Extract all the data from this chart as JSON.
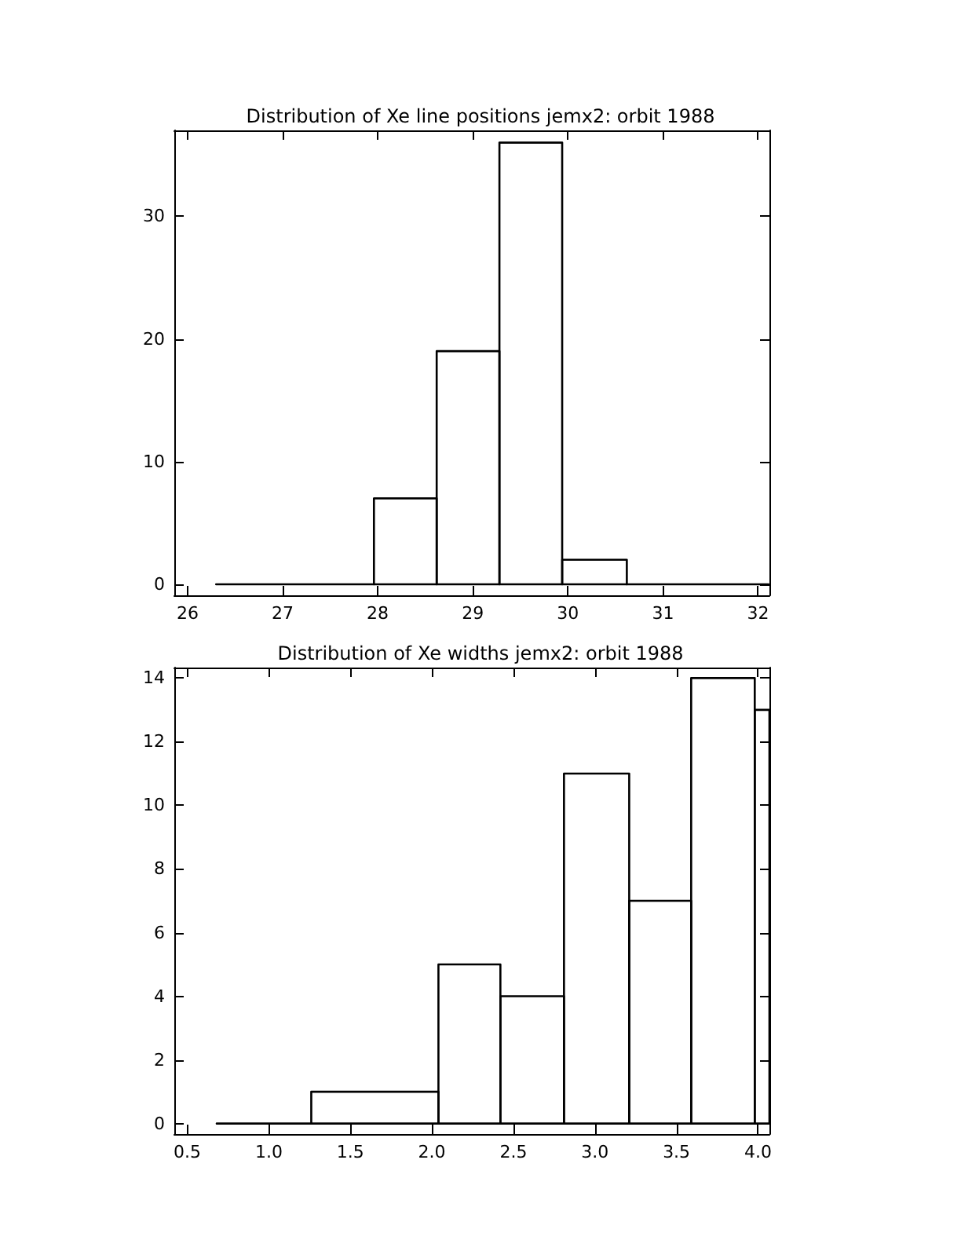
{
  "chart_data": [
    {
      "type": "histogram",
      "title": "Distribution of Xe line positions jemx2: orbit 1988",
      "color": "#000000",
      "grid": false,
      "bins": [
        26.3,
        27.96,
        28.62,
        29.28,
        29.94,
        30.62,
        32.11
      ],
      "values": [
        0,
        7,
        19,
        36,
        2,
        0
      ],
      "xlim": [
        25.86,
        32.12
      ],
      "xticks": [
        26,
        27,
        28,
        29,
        30,
        31,
        32
      ],
      "ylim": [
        -0.9,
        37
      ],
      "yticks": [
        0,
        10,
        20,
        30
      ]
    },
    {
      "type": "histogram",
      "title": "Distribution of Xe widths jemx2: orbit 1988",
      "color": "#000000",
      "grid": false,
      "bins": [
        0.68,
        1.26,
        2.04,
        2.42,
        2.81,
        3.21,
        3.59,
        3.98,
        4.07
      ],
      "values": [
        0,
        1,
        5,
        4,
        11,
        7,
        14,
        13
      ],
      "xlim": [
        0.42,
        4.07
      ],
      "xticks": [
        0.5,
        {
          "value": 1,
          "label": "1.0"
        },
        1.5,
        {
          "value": 2,
          "label": "2.0"
        },
        2.5,
        {
          "value": 3,
          "label": "3.0"
        },
        3.5,
        {
          "value": 4,
          "label": "4.0"
        }
      ],
      "ylim": [
        -0.33,
        14.33
      ],
      "yticks": [
        0,
        2,
        4,
        6,
        8,
        10,
        12,
        14
      ]
    }
  ]
}
